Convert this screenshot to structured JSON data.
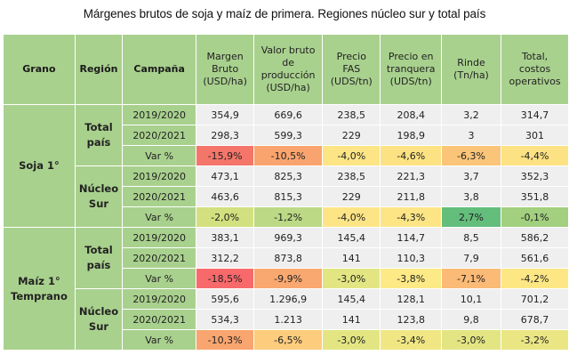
{
  "title": "Márgenes brutos de soja y maíz de primera. Regiones núcleo sur y total país",
  "headers": {
    "grano": "Grano",
    "region": "Región",
    "campana": "Campaña",
    "margen": "Margen Bruto (USD/ha)",
    "valor": "Valor bruto de producción (USD/ha)",
    "fas": "Precio FAS (UDS/tn)",
    "tranquera": "Precio en tranquera (UDS/tn)",
    "rinde": "Rinde (Tn/ha)",
    "costos": "Total, costos operativos"
  },
  "groups": [
    {
      "grano": "Soja 1°",
      "regions": [
        {
          "region": "Total país",
          "rows": [
            {
              "campana": "2019/2020",
              "values": [
                "354,9",
                "669,6",
                "238,5",
                "208,4",
                "3,2",
                "314,7"
              ]
            },
            {
              "campana": "2020/2021",
              "values": [
                "298,3",
                "599,3",
                "229",
                "198,9",
                "3",
                "301"
              ]
            },
            {
              "campana": "Var %",
              "values": [
                "-15,9%",
                "-10,5%",
                "-4,0%",
                "-4,6%",
                "-6,3%",
                "-4,4%"
              ],
              "colors": [
                "#f4756a",
                "#f9a46e",
                "#fde586",
                "#fde283",
                "#fbc579",
                "#fde283"
              ]
            }
          ]
        },
        {
          "region": "Núcleo Sur",
          "rows": [
            {
              "campana": "2019/2020",
              "values": [
                "473,1",
                "825,3",
                "238,5",
                "221,3",
                "3,7",
                "352,3"
              ]
            },
            {
              "campana": "2020/2021",
              "values": [
                "463,6",
                "815,3",
                "229",
                "211,8",
                "3,8",
                "351,8"
              ]
            },
            {
              "campana": "Var %",
              "values": [
                "-2,0%",
                "-1,2%",
                "-4,0%",
                "-4,3%",
                "2,7%",
                "-0,1%"
              ],
              "colors": [
                "#d3e07f",
                "#bcd985",
                "#fde586",
                "#fde586",
                "#63be7b",
                "#a2d07f"
              ]
            }
          ]
        }
      ]
    },
    {
      "grano": "Maíz 1° Temprano",
      "regions": [
        {
          "region": "Total país",
          "rows": [
            {
              "campana": "2019/2020",
              "values": [
                "383,1",
                "969,3",
                "145,4",
                "114,7",
                "8,5",
                "586,2"
              ]
            },
            {
              "campana": "2020/2021",
              "values": [
                "312,2",
                "873,8",
                "141",
                "110,3",
                "7,9",
                "561,6"
              ]
            },
            {
              "campana": "Var %",
              "values": [
                "-18,5%",
                "-9,9%",
                "-3,0%",
                "-3,8%",
                "-7,1%",
                "-4,2%"
              ],
              "colors": [
                "#f8696b",
                "#f9a86f",
                "#e3e583",
                "#fde985",
                "#fbba75",
                "#fde785"
              ]
            }
          ]
        },
        {
          "region": "Núcleo Sur",
          "rows": [
            {
              "campana": "2019/2020",
              "values": [
                "595,6",
                "1.296,9",
                "145,4",
                "128,1",
                "10,1",
                "701,2"
              ]
            },
            {
              "campana": "2020/2021",
              "values": [
                "534,3",
                "1.213",
                "141",
                "123,8",
                "9,8",
                "678,7"
              ]
            },
            {
              "campana": "Var %",
              "values": [
                "-10,3%",
                "-6,5%",
                "-3,0%",
                "-3,4%",
                "-3,0%",
                "-3,2%"
              ],
              "colors": [
                "#f9a56f",
                "#fdcc7d",
                "#e3e583",
                "#f0e784",
                "#e3e583",
                "#ebe684"
              ]
            }
          ]
        }
      ]
    }
  ]
}
